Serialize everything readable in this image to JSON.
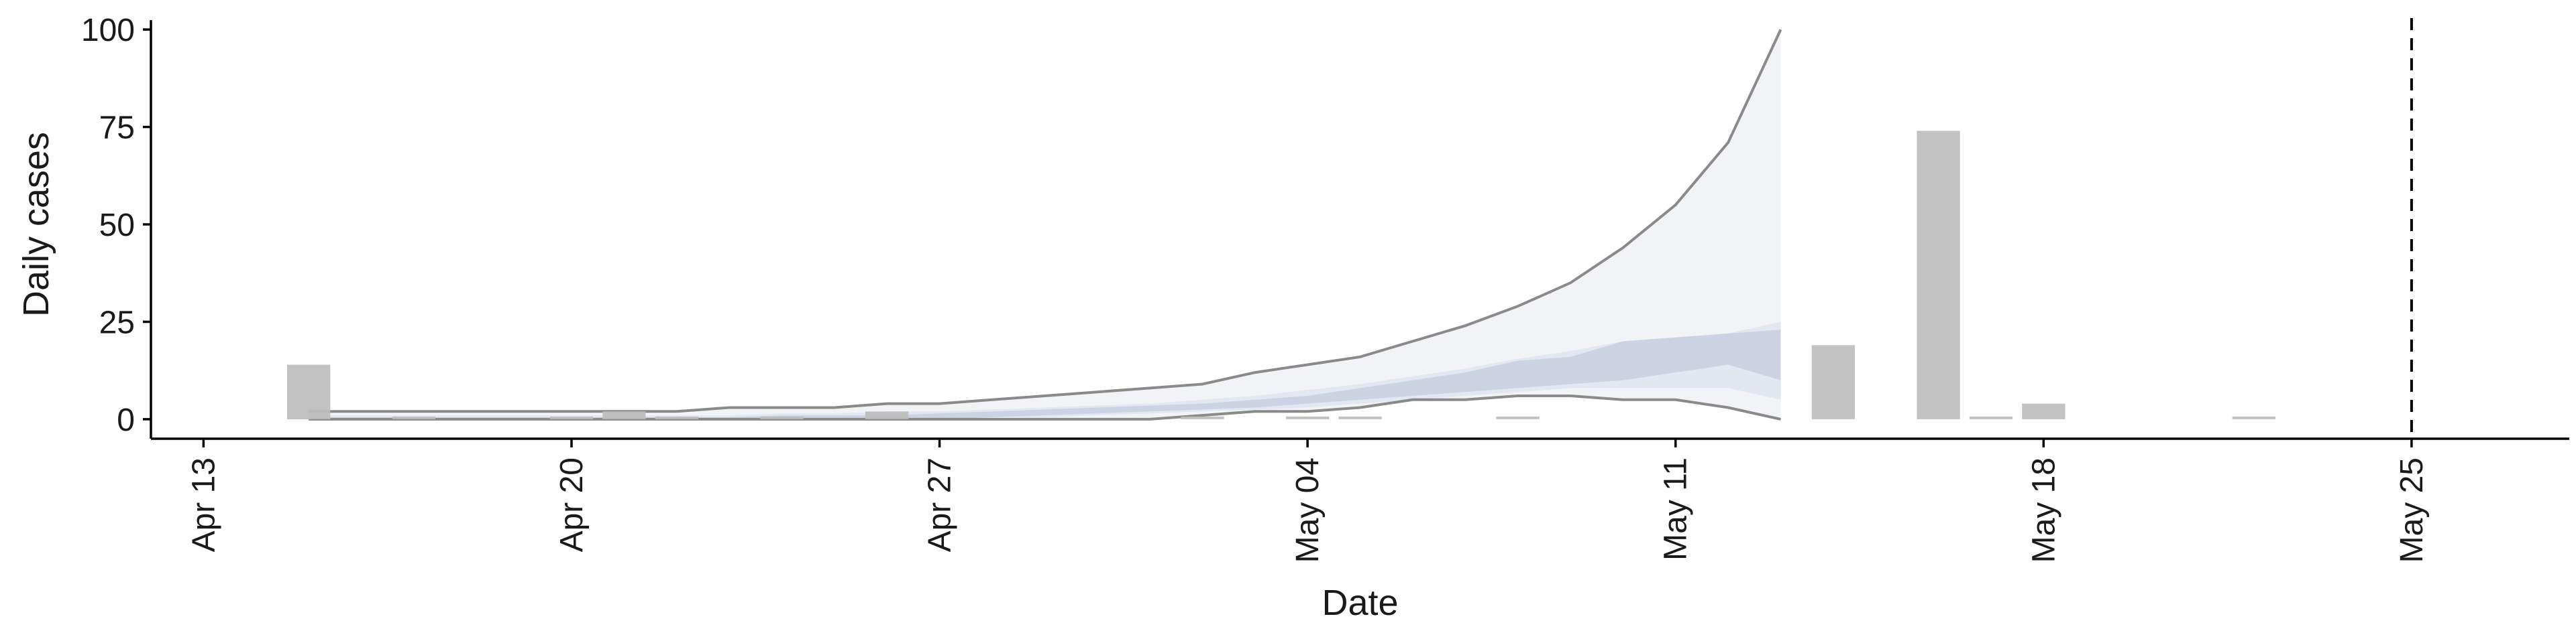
{
  "chart_data": {
    "type": "bar",
    "xlabel": "Date",
    "ylabel": "Daily cases",
    "x_ticks": [
      "Apr 13",
      "Apr 20",
      "Apr 27",
      "May 04",
      "May 11",
      "May 18",
      "May 25"
    ],
    "y_ticks": [
      0,
      25,
      50,
      75,
      100
    ],
    "x_range": [
      "2020-04-12",
      "2020-05-28"
    ],
    "ylim": [
      -5,
      105
    ],
    "reference_line": {
      "date": "2020-05-25",
      "style": "dashed"
    },
    "observed": [
      {
        "date": "2020-04-15",
        "value": 14
      },
      {
        "date": "2020-04-17",
        "value": 0.5
      },
      {
        "date": "2020-04-20",
        "value": 0.5
      },
      {
        "date": "2020-04-21",
        "value": 2
      },
      {
        "date": "2020-04-22",
        "value": 0.5
      },
      {
        "date": "2020-04-24",
        "value": 0.5
      },
      {
        "date": "2020-04-26",
        "value": 2
      },
      {
        "date": "2020-05-02",
        "value": 0.5
      },
      {
        "date": "2020-05-04",
        "value": 0.5
      },
      {
        "date": "2020-05-05",
        "value": 0.5
      },
      {
        "date": "2020-05-08",
        "value": 0.5
      },
      {
        "date": "2020-05-14",
        "value": 19
      },
      {
        "date": "2020-05-16",
        "value": 74
      },
      {
        "date": "2020-05-17",
        "value": 0.5
      },
      {
        "date": "2020-05-18",
        "value": 4
      },
      {
        "date": "2020-05-22",
        "value": 0.5
      }
    ],
    "nowcast": {
      "dates": [
        "2020-04-15",
        "2020-04-16",
        "2020-04-17",
        "2020-04-18",
        "2020-04-19",
        "2020-04-20",
        "2020-04-21",
        "2020-04-22",
        "2020-04-23",
        "2020-04-24",
        "2020-04-25",
        "2020-04-26",
        "2020-04-27",
        "2020-04-28",
        "2020-04-29",
        "2020-04-30",
        "2020-05-01",
        "2020-05-02",
        "2020-05-03",
        "2020-05-04",
        "2020-05-05",
        "2020-05-06",
        "2020-05-07",
        "2020-05-08",
        "2020-05-09",
        "2020-05-10",
        "2020-05-11",
        "2020-05-12",
        "2020-05-13"
      ],
      "upper_90": [
        2,
        2,
        2,
        2,
        2,
        2,
        2,
        2,
        3,
        3,
        3,
        4,
        4,
        5,
        6,
        7,
        8,
        9,
        12,
        14,
        16,
        20,
        24,
        29,
        35,
        44,
        55,
        71,
        100
      ],
      "lower_90": [
        0,
        0,
        0,
        0,
        0,
        0,
        0,
        0,
        0,
        0,
        0,
        0,
        0,
        0,
        0,
        0,
        0,
        1,
        2,
        2,
        3,
        5,
        5,
        6,
        6,
        5,
        5,
        3,
        0
      ],
      "upper_50": [
        1,
        1,
        1,
        1,
        1,
        1,
        1,
        1,
        1,
        1.5,
        1.5,
        2,
        2,
        2.5,
        3,
        3.5,
        4,
        5,
        6,
        7.5,
        9,
        11,
        13,
        15.5,
        17.5,
        20,
        21,
        22,
        25
      ],
      "lower_50": [
        0,
        0,
        0,
        0,
        0,
        0,
        0,
        0,
        0,
        0,
        0,
        0,
        0,
        0.5,
        0.5,
        1,
        1.5,
        2,
        2.5,
        3,
        4,
        5,
        6,
        7,
        8,
        8,
        8,
        8,
        5
      ],
      "upper_inner": [
        0.5,
        0.5,
        0.5,
        0.5,
        0.5,
        0.5,
        0.5,
        0.5,
        0.5,
        1,
        1,
        1,
        1.5,
        2,
        2.5,
        3,
        3.5,
        4,
        5,
        6,
        8,
        10,
        12,
        15,
        16,
        20,
        21,
        22,
        23
      ],
      "lower_inner": [
        0,
        0,
        0,
        0,
        0,
        0,
        0,
        0,
        0,
        0,
        0,
        0,
        0,
        0.5,
        1,
        1.5,
        2,
        2.5,
        3,
        4,
        5,
        6,
        7,
        8,
        9,
        10,
        12,
        14,
        10
      ]
    }
  }
}
